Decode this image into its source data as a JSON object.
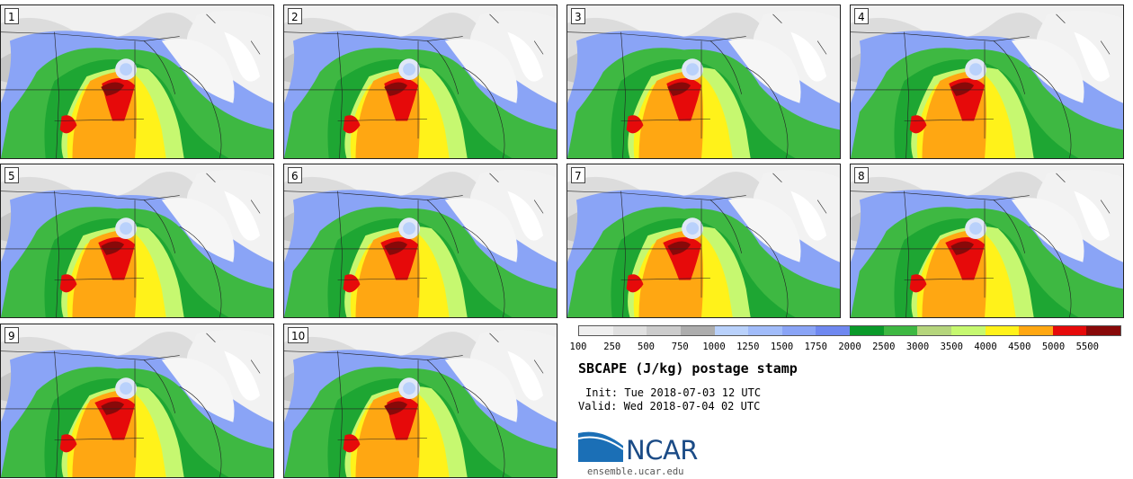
{
  "panels": [
    {
      "label": "1"
    },
    {
      "label": "2"
    },
    {
      "label": "3"
    },
    {
      "label": "4"
    },
    {
      "label": "5"
    },
    {
      "label": "6"
    },
    {
      "label": "7"
    },
    {
      "label": "8"
    },
    {
      "label": "9"
    },
    {
      "label": "10"
    }
  ],
  "colorbar": {
    "labels": [
      "100",
      "250",
      "500",
      "750",
      "1000",
      "1250",
      "1500",
      "1750",
      "2000",
      "2500",
      "3000",
      "3500",
      "4000",
      "4500",
      "5000",
      "5500"
    ],
    "colors": [
      "#efefef",
      "#e0e0e0",
      "#cccccc",
      "#adadad",
      "#b9d1fb",
      "#a1bcfa",
      "#8aa4f6",
      "#6f88f0",
      "#0a9a2a",
      "#3eb842",
      "#b5d57c",
      "#c6f870",
      "#fff21a",
      "#ffa712",
      "#e60a0a",
      "#880909"
    ]
  },
  "title": "SBCAPE (J/kg) postage stamp",
  "init": "Init: Tue 2018-07-03 12 UTC",
  "valid": "Valid: Wed 2018-07-04 02 UTC",
  "logo": {
    "text": "NCAR",
    "site": "ensemble.ucar.edu",
    "color": "#1b6fb6"
  }
}
